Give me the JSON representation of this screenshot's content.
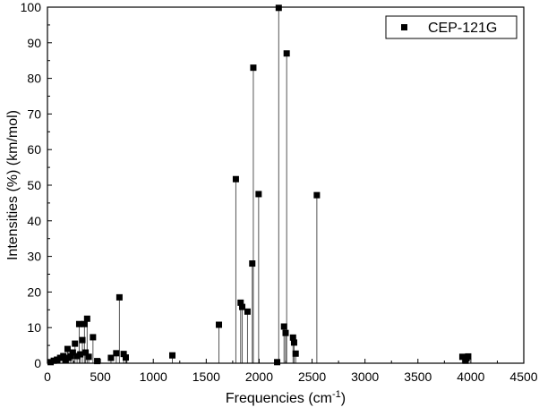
{
  "chart_data": {
    "type": "scatter",
    "style": "stick-spectrum",
    "xlabel": "Frequencies (cm",
    "xlabel_sup": "-1",
    "xlabel_close": ")",
    "ylabel": "Intensities (%) (km/mol)",
    "xlim": [
      0,
      4500
    ],
    "ylim": [
      0,
      100
    ],
    "xticks": [
      0,
      500,
      1000,
      1500,
      2000,
      2500,
      3000,
      3500,
      4000,
      4500
    ],
    "yticks": [
      0,
      10,
      20,
      30,
      40,
      50,
      60,
      70,
      80,
      90,
      100
    ],
    "grid": false,
    "legend_position": "top-right",
    "series": [
      {
        "name": "CEP-121G",
        "color": "#000000",
        "marker": "square",
        "x": [
          30,
          60,
          90,
          120,
          150,
          170,
          190,
          200,
          220,
          240,
          260,
          280,
          300,
          310,
          330,
          350,
          360,
          375,
          390,
          430,
          470,
          600,
          650,
          680,
          720,
          740,
          1180,
          1620,
          1780,
          1825,
          1840,
          1890,
          1935,
          1945,
          1995,
          2170,
          2185,
          2235,
          2250,
          2260,
          2320,
          2330,
          2345,
          2545,
          3920,
          3950,
          3960,
          3975
        ],
        "y": [
          0.3,
          0.7,
          1.0,
          1.5,
          2.0,
          0.8,
          4.0,
          1.5,
          2.0,
          3.0,
          5.5,
          2.0,
          11.0,
          2.5,
          6.5,
          11.0,
          3.0,
          12.5,
          1.8,
          7.3,
          0.6,
          1.5,
          2.8,
          18.5,
          2.6,
          1.6,
          2.2,
          10.8,
          51.7,
          17.0,
          15.8,
          14.5,
          28.0,
          83.0,
          47.5,
          0.3,
          99.8,
          10.3,
          8.5,
          87.0,
          7.2,
          5.8,
          2.7,
          47.2,
          1.8,
          0.7,
          1.4,
          1.9
        ]
      }
    ]
  }
}
